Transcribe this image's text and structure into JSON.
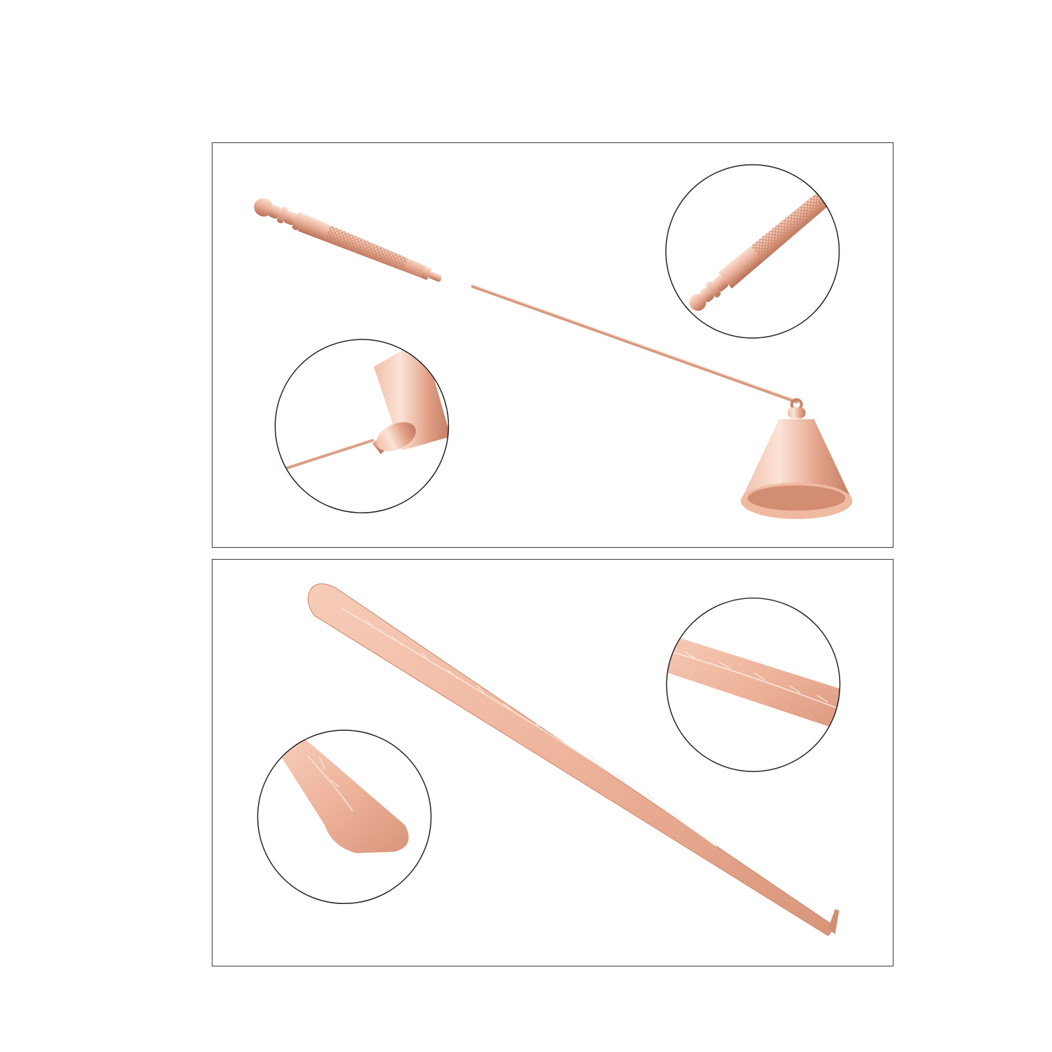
{
  "colors": {
    "rose_gold_light": "#f6c9b6",
    "rose_gold_mid": "#e3a58c",
    "rose_gold_dark": "#b66c52",
    "panel_border": "#3a3a3a",
    "circle_border": "#222222",
    "background": "#ffffff"
  },
  "panels": [
    {
      "name": "candle-snuffer-panel",
      "product": "candle-snuffer",
      "detail_circles": [
        "snuffer-handle-closeup",
        "snuffer-bell-closeup"
      ]
    },
    {
      "name": "wick-dipper-panel",
      "product": "wick-dipper",
      "detail_circles": [
        "dipper-shaft-closeup",
        "dipper-tip-closeup"
      ]
    }
  ]
}
